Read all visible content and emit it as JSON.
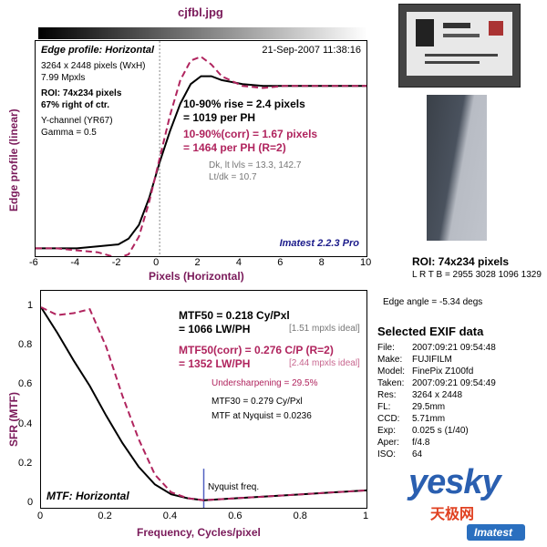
{
  "file_title": "cjfbl.jpg",
  "top_chart": {
    "header_left": "Edge profile: Horizontal",
    "header_right": "21-Sep-2007 11:38:16",
    "info": [
      "3264 x 2448 pixels (WxH)",
      "7.99 Mpxls"
    ],
    "roi_info": [
      "ROI: 74x234 pixels",
      "67% right of ctr."
    ],
    "channel_info": [
      "Y-channel  (YR67)",
      "Gamma = 0.5"
    ],
    "rise_lines": [
      "10-90% rise = 2.4 pixels",
      "= 1019 per PH"
    ],
    "corr_lines": [
      "10-90%(corr) = 1.67 pixels",
      "= 1464 per PH  (R=2)"
    ],
    "dk_lines": [
      "Dk, lt lvls = 13.3, 142.7",
      "Lt/dk = 10.7"
    ],
    "brand": "Imatest 2.2.3 Pro",
    "ylabel": "Edge profile (linear)",
    "xlabel": "Pixels (Horizontal)",
    "xticks": [
      "-6",
      "-4",
      "-2",
      "0",
      "2",
      "4",
      "6",
      "8",
      "10"
    ]
  },
  "bottom_chart": {
    "title": "MTF: Horizontal",
    "mtf50_lines": [
      "MTF50 = 0.218 Cy/Pxl",
      "= 1066 LW/PH"
    ],
    "mtf50_ideal": "[1.51 mpxls ideal]",
    "corr_lines": [
      "MTF50(corr) = 0.276 C/P  (R=2)",
      "= 1352 LW/PH"
    ],
    "corr_ideal": "[2.44 mpxls ideal]",
    "undersharpening": "Undersharpening = 29.5%",
    "mtf30": "MTF30 = 0.279 Cy/Pxl",
    "nyquist_mtf": "MTF at Nyquist = 0.0236",
    "nyquist_label": "Nyquist freq.",
    "ylabel": "SFR (MTF)",
    "xlabel": "Frequency, Cycles/pixel",
    "xticks": [
      "0",
      "0.2",
      "0.4",
      "0.6",
      "0.8",
      "1"
    ],
    "yticks": [
      "1",
      "0.8",
      "0.6",
      "0.4",
      "0.2",
      "0"
    ]
  },
  "roi": {
    "label": "ROI: 74x234 pixels",
    "coords": "L R  T B = 2955 3028  1096 1329",
    "edge_angle": "Edge angle = -5.34 degs"
  },
  "exif": {
    "title": "Selected EXIF data",
    "rows": [
      {
        "k": "File:",
        "v": "2007:09:21 09:54:48"
      },
      {
        "k": "Make:",
        "v": "FUJIFILM"
      },
      {
        "k": "Model:",
        "v": "FinePix Z100fd"
      },
      {
        "k": "Taken:",
        "v": "2007:09:21 09:54:49"
      },
      {
        "k": "Res:",
        "v": "3264 x 2448"
      },
      {
        "k": "FL:",
        "v": "29.5mm"
      },
      {
        "k": "CCD:",
        "v": "5.71mm"
      },
      {
        "k": "Exp:",
        "v": "0.025 s  (1/40)"
      },
      {
        "k": "Aper:",
        "v": "f/4.8"
      },
      {
        "k": "ISO:",
        "v": "64"
      }
    ]
  },
  "watermark": {
    "text": "yesky",
    "sub": "天极网",
    "badge": "Imatest"
  },
  "chart_data": [
    {
      "type": "line",
      "title": "Edge profile: Horizontal",
      "xlabel": "Pixels (Horizontal)",
      "ylabel": "Edge profile (linear)",
      "xlim": [
        -6,
        10
      ],
      "ylim": [
        0,
        1.1
      ],
      "series": [
        {
          "x": [
            -6,
            -5,
            -4,
            -3,
            -2,
            -1.5,
            -1,
            -0.5,
            0,
            0.5,
            1,
            1.5,
            2,
            2.5,
            3,
            4,
            5,
            6,
            8,
            10
          ],
          "values": [
            0.04,
            0.04,
            0.04,
            0.05,
            0.06,
            0.09,
            0.16,
            0.3,
            0.48,
            0.64,
            0.78,
            0.88,
            0.92,
            0.92,
            0.9,
            0.88,
            0.87,
            0.87,
            0.87,
            0.87
          ]
        },
        {
          "x": [
            -6,
            -5,
            -4,
            -3,
            -2,
            -1.5,
            -1,
            -0.5,
            0,
            0.5,
            1,
            1.5,
            2,
            2.5,
            3,
            4,
            5,
            6,
            8,
            10
          ],
          "values": [
            0.04,
            0.04,
            0.03,
            0.02,
            -0.01,
            0.01,
            0.1,
            0.28,
            0.5,
            0.72,
            0.9,
            1.0,
            1.02,
            0.98,
            0.92,
            0.87,
            0.86,
            0.87,
            0.87,
            0.87
          ]
        }
      ]
    },
    {
      "type": "line",
      "title": "MTF: Horizontal",
      "xlabel": "Frequency, Cycles/pixel",
      "ylabel": "SFR (MTF)",
      "xlim": [
        0,
        1
      ],
      "ylim": [
        0,
        1
      ],
      "series": [
        {
          "x": [
            0,
            0.05,
            0.1,
            0.15,
            0.2,
            0.25,
            0.3,
            0.35,
            0.4,
            0.45,
            0.5,
            0.6,
            0.7,
            0.8,
            0.9,
            1.0
          ],
          "values": [
            1.0,
            0.87,
            0.73,
            0.6,
            0.45,
            0.31,
            0.19,
            0.1,
            0.05,
            0.03,
            0.02,
            0.03,
            0.04,
            0.05,
            0.06,
            0.07
          ]
        },
        {
          "x": [
            0,
            0.05,
            0.1,
            0.15,
            0.2,
            0.25,
            0.3,
            0.35,
            0.4,
            0.45,
            0.5,
            0.6,
            0.7,
            0.8,
            0.9,
            1.0
          ],
          "values": [
            1.0,
            0.96,
            0.97,
            0.99,
            0.8,
            0.55,
            0.33,
            0.15,
            0.06,
            0.03,
            0.02,
            0.03,
            0.04,
            0.05,
            0.06,
            0.07
          ]
        }
      ]
    }
  ]
}
